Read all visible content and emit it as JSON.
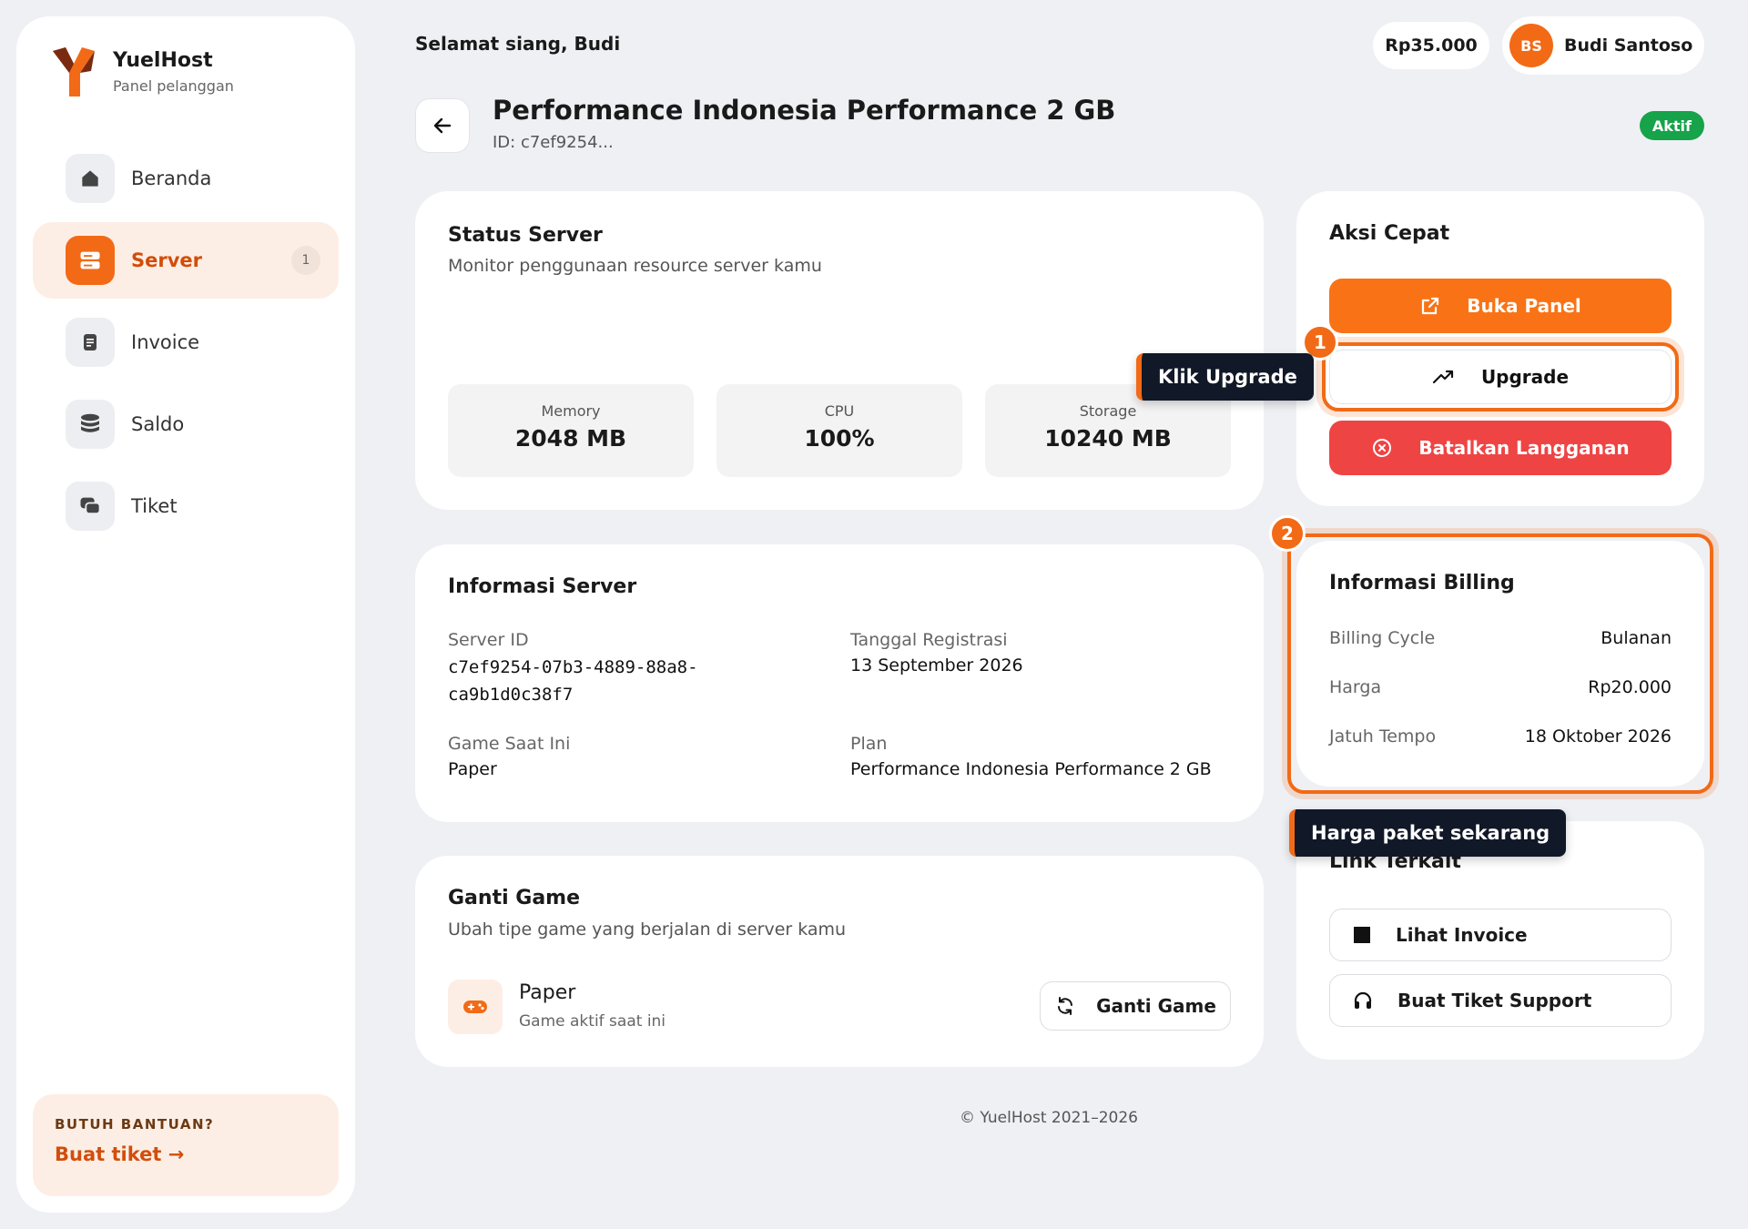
{
  "brand": {
    "name": "YuelHost",
    "subtitle": "Panel pelanggan"
  },
  "sidebar": {
    "items": [
      {
        "label": "Beranda",
        "icon": "home-icon",
        "active": false
      },
      {
        "label": "Server",
        "icon": "server-icon",
        "active": true,
        "badge": "1"
      },
      {
        "label": "Invoice",
        "icon": "document-icon",
        "active": false
      },
      {
        "label": "Saldo",
        "icon": "coins-icon",
        "active": false
      },
      {
        "label": "Tiket",
        "icon": "chat-icon",
        "active": false
      }
    ],
    "help": {
      "title": "BUTUH BANTUAN?",
      "link": "Buat tiket →"
    }
  },
  "header": {
    "greeting": "Selamat siang, Budi",
    "balance": "Rp35.000",
    "user": {
      "initials": "BS",
      "name": "Budi Santoso"
    }
  },
  "page": {
    "title": "Performance Indonesia Performance 2 GB",
    "id_text": "ID: c7ef9254...",
    "status": "Aktif"
  },
  "status_card": {
    "title": "Status Server",
    "subtitle": "Monitor penggunaan resource server kamu",
    "stats": [
      {
        "label": "Memory",
        "value": "2048 MB"
      },
      {
        "label": "CPU",
        "value": "100%"
      },
      {
        "label": "Storage",
        "value": "10240 MB"
      }
    ]
  },
  "info_card": {
    "title": "Informasi Server",
    "server_id_label": "Server ID",
    "server_id_line1": "c7ef9254-07b3-4889-88a8-",
    "server_id_line2": "ca9b1d0c38f7",
    "reg_label": "Tanggal Registrasi",
    "reg_value": "13 September 2026",
    "game_label": "Game Saat Ini",
    "game_value": "Paper",
    "plan_label": "Plan",
    "plan_value": "Performance Indonesia Performance 2 GB"
  },
  "game_card": {
    "title": "Ganti Game",
    "subtitle": "Ubah tipe game yang berjalan di server kamu",
    "game_name": "Paper",
    "game_sub": "Game aktif saat ini",
    "button": "Ganti Game"
  },
  "quick_actions": {
    "title": "Aksi Cepat",
    "open_panel": "Buka Panel",
    "upgrade": "Upgrade",
    "cancel": "Batalkan Langganan"
  },
  "billing": {
    "title": "Informasi Billing",
    "rows": [
      {
        "key": "Billing Cycle",
        "value": "Bulanan"
      },
      {
        "key": "Harga",
        "value": "Rp20.000"
      },
      {
        "key": "Jatuh Tempo",
        "value": "18 Oktober 2026"
      }
    ]
  },
  "links": {
    "title": "Link Terkait",
    "invoice": "Lihat Invoice",
    "support": "Buat Tiket Support"
  },
  "tour": {
    "step1": {
      "num": "1",
      "text": "Klik Upgrade"
    },
    "step2": {
      "num": "2",
      "text": "Harga paket sekarang"
    }
  },
  "footer": "© YuelHost 2021–2026",
  "colors": {
    "accent": "#f26a16",
    "danger": "#ef4444",
    "success": "#16a34a",
    "dark": "#111827"
  }
}
